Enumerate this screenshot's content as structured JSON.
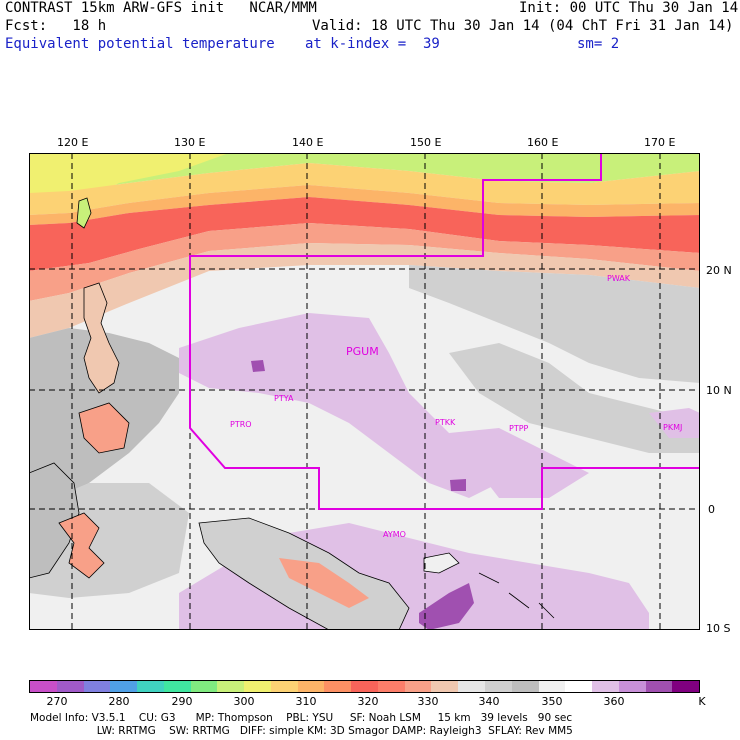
{
  "header": {
    "title": "CONTRAST 15km ARW-GFS init   NCAR/MMM",
    "init": "Init: 00 UTC Thu 30 Jan 14",
    "fcst": "Fcst:   18 h",
    "valid": "Valid: 18 UTC Thu 30 Jan 14 (04 ChT Fri 31 Jan 14)",
    "field": "Equivalent potential temperature",
    "level": "at k-index =  39",
    "smooth": "sm= 2"
  },
  "map": {
    "lon_labels": [
      "120 E",
      "130 E",
      "140 E",
      "150 E",
      "160 E",
      "170 E"
    ],
    "lat_labels": [
      "20 N",
      "10 N",
      "0",
      "10 S"
    ],
    "stations": [
      {
        "name": "PWAK"
      },
      {
        "name": "PGUM"
      },
      {
        "name": "PTYA"
      },
      {
        "name": "PTRO"
      },
      {
        "name": "PTKK"
      },
      {
        "name": "PTPP"
      },
      {
        "name": "PKMJ"
      },
      {
        "name": "AYMO"
      }
    ],
    "colors": {
      "frame": "#000000",
      "grid": "#000000",
      "domain_outline": "#e000e0",
      "coast": "#000000"
    }
  },
  "colorbar": {
    "units": "K",
    "labels": [
      "270",
      "280",
      "290",
      "300",
      "310",
      "320",
      "330",
      "340",
      "350",
      "360"
    ],
    "colors": [
      "#c84fc8",
      "#a05ac8",
      "#8080e0",
      "#50a0e6",
      "#40d2c0",
      "#40e6a0",
      "#80ea80",
      "#c8f07a",
      "#f0f070",
      "#fcd274",
      "#fcb468",
      "#fc9064",
      "#f8645a",
      "#fc7e6a",
      "#f8a088",
      "#f0c8b0",
      "#e6e6e6",
      "#d0d0d0",
      "#bebebe",
      "#f0f0f0",
      "#ffffff",
      "#e0c0e6",
      "#c890d8",
      "#a050b0",
      "#800080"
    ]
  },
  "footer": {
    "line1": "Model Info: V3.5.1    CU: G3      MP: Thompson    PBL: YSU     SF: Noah LSM     15 km   39 levels   90 sec",
    "line2": "                    LW: RRTMG    SW: RRTMG   DIFF: simple KM: 3D Smagor DAMP: Rayleigh3  SFLAY: Rev MM5"
  }
}
